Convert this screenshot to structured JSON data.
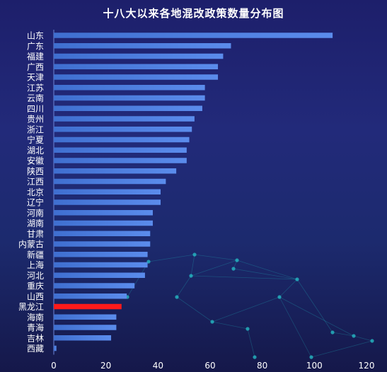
{
  "chart_data": {
    "type": "bar",
    "orientation": "horizontal",
    "title": "十八大以来各地混改政策数量分布图",
    "xlabel": "",
    "ylabel": "",
    "xlim": [
      0,
      120
    ],
    "xticks": [
      0,
      20,
      40,
      60,
      80,
      100,
      120
    ],
    "grid": false,
    "bar_color": "#4f82e0",
    "highlight_color": "#ff1a1a",
    "highlight_category": "黑龙江",
    "categories": [
      "山东",
      "广东",
      "福建",
      "广西",
      "天津",
      "江苏",
      "云南",
      "四川",
      "贵州",
      "浙江",
      "宁夏",
      "湖北",
      "安徽",
      "陕西",
      "江西",
      "北京",
      "辽宁",
      "河南",
      "湖南",
      "甘肃",
      "内蒙古",
      "新疆",
      "上海",
      "河北",
      "重庆",
      "山西",
      "黑龙江",
      "海南",
      "青海",
      "吉林",
      "西藏"
    ],
    "values": [
      107,
      68,
      65,
      63,
      63,
      58,
      58,
      57,
      54,
      53,
      52,
      51,
      51,
      47,
      43,
      41,
      41,
      38,
      38,
      37,
      37,
      36,
      36,
      35,
      31,
      28,
      26,
      24,
      24,
      22,
      1
    ]
  }
}
